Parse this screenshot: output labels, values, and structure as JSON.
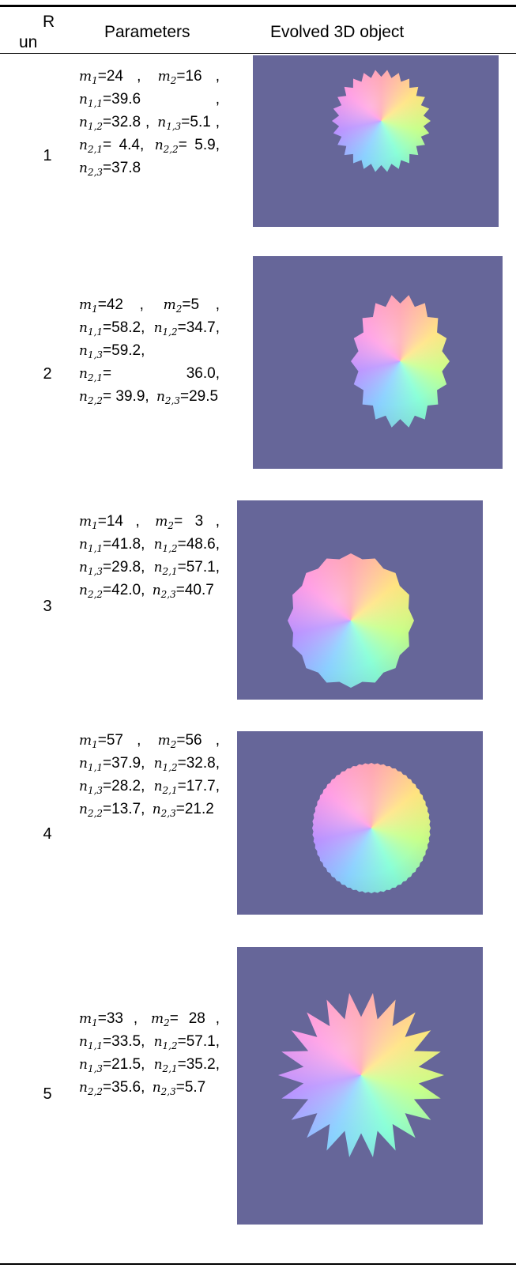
{
  "header": {
    "run": [
      "R",
      "un"
    ],
    "parameters": "Parameters",
    "object": "Evolved 3D object"
  },
  "rows": [
    {
      "run": "1",
      "params": [
        {
          "var": "m",
          "sub": "1",
          "val": "=24 ,"
        },
        {
          "var": "m",
          "sub": "2",
          "val": "=16 ,"
        },
        {
          "var": "n",
          "sub": "1,1",
          "val": "=39.6 ,"
        },
        {
          "var": "n",
          "sub": "1,2",
          "val": "=32.8 ,"
        },
        {
          "var": "n",
          "sub": "1,3",
          "val": "=5.1 ,"
        },
        {
          "var": "n",
          "sub": "2,1",
          "val": "= 4.4,"
        },
        {
          "var": "n",
          "sub": "2,2",
          "val": "= 5.9,"
        },
        {
          "var": "n",
          "sub": "2,3",
          "val": "=37.8"
        }
      ]
    },
    {
      "run": "2",
      "params": [
        {
          "var": "m",
          "sub": "1",
          "val": "=42 ,"
        },
        {
          "var": "m",
          "sub": "2",
          "val": "=5 ,"
        },
        {
          "var": "n",
          "sub": "1,1",
          "val": "=58.2,"
        },
        {
          "var": "n",
          "sub": "1,2",
          "val": "=34.7,"
        },
        {
          "var": "n",
          "sub": "1,3",
          "val": "=59.2,"
        },
        {
          "var": "n",
          "sub": "2,1",
          "val": "= 36.0,"
        },
        {
          "var": "n",
          "sub": "2,2",
          "val": "= 39.9,"
        },
        {
          "var": "n",
          "sub": "2,3",
          "val": "=29.5"
        }
      ]
    },
    {
      "run": "3",
      "params": [
        {
          "var": "m",
          "sub": "1",
          "val": "=14 ,"
        },
        {
          "var": "m",
          "sub": "2",
          "val": "= 3 ,"
        },
        {
          "var": "n",
          "sub": "1,1",
          "val": "=41.8,"
        },
        {
          "var": "n",
          "sub": "1,2",
          "val": "=48.6,"
        },
        {
          "var": "n",
          "sub": "1,3",
          "val": "=29.8,"
        },
        {
          "var": "n",
          "sub": "2,1",
          "val": "=57.1,"
        },
        {
          "var": "n",
          "sub": "2,2",
          "val": "=42.0,"
        },
        {
          "var": "n",
          "sub": "2,3",
          "val": "=40.7"
        }
      ]
    },
    {
      "run": "4",
      "params": [
        {
          "var": "m",
          "sub": "1",
          "val": "=57 ,"
        },
        {
          "var": "m",
          "sub": "2",
          "val": "=56 ,"
        },
        {
          "var": "n",
          "sub": "1,1",
          "val": "=37.9,"
        },
        {
          "var": "n",
          "sub": "1,2",
          "val": "=32.8,"
        },
        {
          "var": "n",
          "sub": "1,3",
          "val": "=28.2,"
        },
        {
          "var": "n",
          "sub": "2,1",
          "val": "=17.7,"
        },
        {
          "var": "n",
          "sub": "2,2",
          "val": "=13.7,"
        },
        {
          "var": "n",
          "sub": "2,3",
          "val": "=21.2"
        }
      ]
    },
    {
      "run": "5",
      "params": [
        {
          "var": "m",
          "sub": "1",
          "val": "=33 ,"
        },
        {
          "var": "m",
          "sub": "2",
          "val": "= 28 ,"
        },
        {
          "var": "n",
          "sub": "1,1",
          "val": "=33.5,"
        },
        {
          "var": "n",
          "sub": "1,2",
          "val": "=57.1,"
        },
        {
          "var": "n",
          "sub": "1,3",
          "val": "=21.5,"
        },
        {
          "var": "n",
          "sub": "2,1",
          "val": "=35.2,"
        },
        {
          "var": "n",
          "sub": "2,2",
          "val": "=35.6,"
        },
        {
          "var": "n",
          "sub": "2,3",
          "val": "=5.7"
        }
      ]
    }
  ]
}
